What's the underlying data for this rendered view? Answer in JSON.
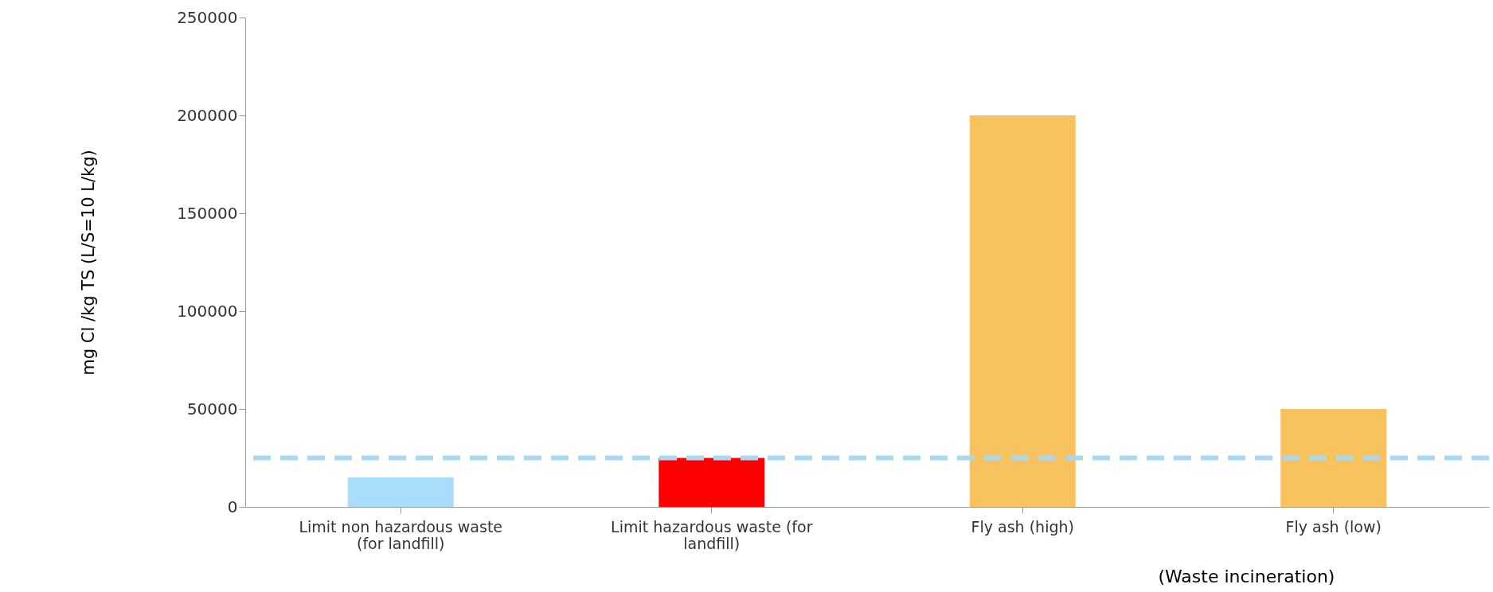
{
  "chart_data": {
    "type": "bar",
    "categories": [
      "Limit non hazardous waste (for landfill)",
      "Limit hazardous waste (for landfill)",
      "Fly ash (high)",
      "Fly ash (low)"
    ],
    "values": [
      15000,
      25000,
      200000,
      50000
    ],
    "colors": [
      "#aadcfc",
      "#ff0000",
      "#f8c25f",
      "#f8c25f"
    ],
    "ylabel": "mg Cl /kg TS (L/S=10 L/kg)",
    "ylim": [
      0,
      250000
    ],
    "yticks": [
      0,
      50000,
      100000,
      150000,
      200000,
      250000
    ],
    "ref_lines": [
      {
        "axis": "y",
        "value": 25000,
        "color": "#a9d8f2",
        "line_style": "dashed"
      }
    ],
    "annotations": [
      "(Waste incineration)"
    ],
    "grid": false
  }
}
